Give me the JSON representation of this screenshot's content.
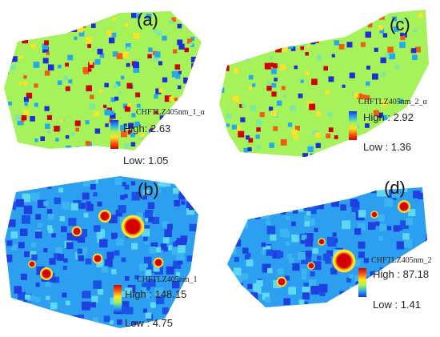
{
  "panels": [
    {
      "label": "(a)",
      "layer": "CHFTLZ405nm_1_α",
      "high_label": "High",
      "high": "2.63",
      "low_label": "Low",
      "low": "1.05",
      "ramp": "blue-top"
    },
    {
      "label": "(b)",
      "layer": "CHFTLZ405nm_1",
      "high_label": "High",
      "high": "148.15",
      "low_label": "Low",
      "low": "4.75",
      "ramp": "red-top"
    },
    {
      "label": "(c)",
      "layer": "CHFTLZ405nm_2_α",
      "high_label": "High",
      "high": "2.92",
      "low_label": "Low",
      "low": "1.36",
      "ramp": "blue-top"
    },
    {
      "label": "(d)",
      "layer": "CHFTLZ405nm_2",
      "high_label": "High",
      "high": "87.18",
      "low_label": "Low",
      "low": "1.41",
      "ramp": "red-top"
    }
  ],
  "colors": {
    "blue": "#1f2fd6",
    "cyan": "#24a8f0",
    "green": "#9ff35a",
    "yellow": "#ffe226",
    "orange": "#f25c12",
    "red": "#d40000"
  }
}
